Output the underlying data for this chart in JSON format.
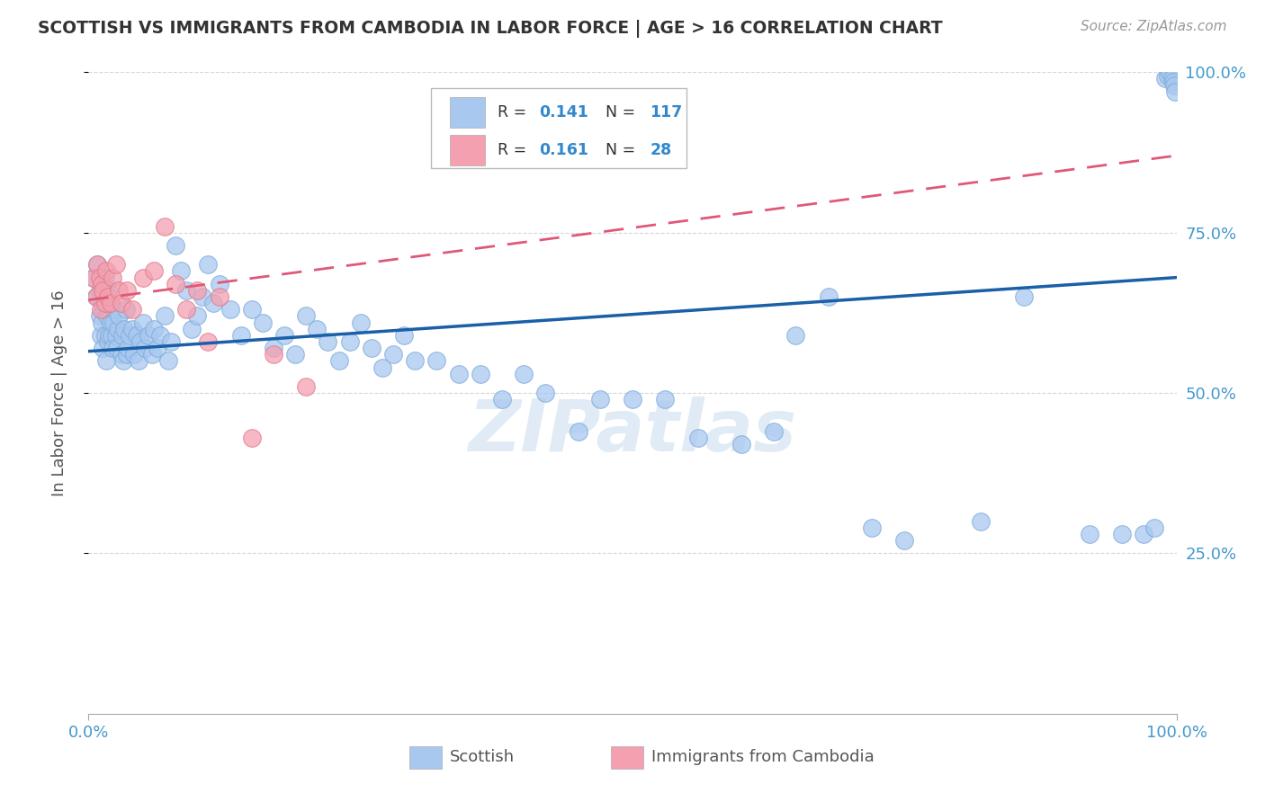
{
  "title": "SCOTTISH VS IMMIGRANTS FROM CAMBODIA IN LABOR FORCE | AGE > 16 CORRELATION CHART",
  "source": "Source: ZipAtlas.com",
  "ylabel": "In Labor Force | Age > 16",
  "xlim": [
    0,
    1
  ],
  "ylim": [
    0,
    1
  ],
  "scottish_color": "#a8c8f0",
  "scottish_edge_color": "#7aaad8",
  "scottish_line_color": "#1a5fa8",
  "cambodia_color": "#f4a0b0",
  "cambodia_edge_color": "#e07888",
  "cambodia_line_color": "#e05878",
  "watermark": "ZIPatlas",
  "background_color": "#ffffff",
  "grid_color": "#cccccc",
  "title_color": "#333333",
  "scottish_x": [
    0.005,
    0.007,
    0.008,
    0.01,
    0.01,
    0.011,
    0.012,
    0.013,
    0.013,
    0.014,
    0.015,
    0.015,
    0.016,
    0.017,
    0.018,
    0.018,
    0.019,
    0.02,
    0.02,
    0.021,
    0.022,
    0.023,
    0.024,
    0.025,
    0.026,
    0.027,
    0.028,
    0.03,
    0.031,
    0.032,
    0.033,
    0.034,
    0.035,
    0.036,
    0.038,
    0.04,
    0.042,
    0.044,
    0.046,
    0.048,
    0.05,
    0.052,
    0.055,
    0.058,
    0.06,
    0.063,
    0.066,
    0.07,
    0.073,
    0.076,
    0.08,
    0.085,
    0.09,
    0.095,
    0.1,
    0.105,
    0.11,
    0.115,
    0.12,
    0.13,
    0.14,
    0.15,
    0.16,
    0.17,
    0.18,
    0.19,
    0.2,
    0.21,
    0.22,
    0.23,
    0.24,
    0.25,
    0.26,
    0.27,
    0.28,
    0.29,
    0.3,
    0.32,
    0.34,
    0.36,
    0.38,
    0.4,
    0.42,
    0.45,
    0.47,
    0.5,
    0.53,
    0.56,
    0.6,
    0.63,
    0.65,
    0.68,
    0.72,
    0.75,
    0.82,
    0.86,
    0.92,
    0.95,
    0.97,
    0.98,
    0.99,
    0.992,
    0.994,
    0.996,
    0.997,
    0.998,
    0.999
  ],
  "scottish_y": [
    0.68,
    0.65,
    0.7,
    0.66,
    0.62,
    0.59,
    0.61,
    0.64,
    0.57,
    0.63,
    0.68,
    0.59,
    0.55,
    0.62,
    0.66,
    0.58,
    0.59,
    0.61,
    0.64,
    0.59,
    0.57,
    0.61,
    0.63,
    0.59,
    0.57,
    0.6,
    0.62,
    0.56,
    0.59,
    0.55,
    0.6,
    0.63,
    0.56,
    0.57,
    0.59,
    0.6,
    0.56,
    0.59,
    0.55,
    0.58,
    0.61,
    0.57,
    0.59,
    0.56,
    0.6,
    0.57,
    0.59,
    0.62,
    0.55,
    0.58,
    0.73,
    0.69,
    0.66,
    0.6,
    0.62,
    0.65,
    0.7,
    0.64,
    0.67,
    0.63,
    0.59,
    0.63,
    0.61,
    0.57,
    0.59,
    0.56,
    0.62,
    0.6,
    0.58,
    0.55,
    0.58,
    0.61,
    0.57,
    0.54,
    0.56,
    0.59,
    0.55,
    0.55,
    0.53,
    0.53,
    0.49,
    0.53,
    0.5,
    0.44,
    0.49,
    0.49,
    0.49,
    0.43,
    0.42,
    0.44,
    0.59,
    0.65,
    0.29,
    0.27,
    0.3,
    0.65,
    0.28,
    0.28,
    0.28,
    0.29,
    0.99,
    0.995,
    1.0,
    0.99,
    0.985,
    0.98,
    0.97
  ],
  "cambodia_x": [
    0.005,
    0.007,
    0.008,
    0.01,
    0.011,
    0.012,
    0.013,
    0.015,
    0.016,
    0.018,
    0.02,
    0.022,
    0.025,
    0.028,
    0.03,
    0.035,
    0.04,
    0.05,
    0.06,
    0.07,
    0.08,
    0.09,
    0.1,
    0.11,
    0.12,
    0.15,
    0.17,
    0.2
  ],
  "cambodia_y": [
    0.68,
    0.65,
    0.7,
    0.68,
    0.63,
    0.67,
    0.66,
    0.64,
    0.69,
    0.65,
    0.64,
    0.68,
    0.7,
    0.66,
    0.64,
    0.66,
    0.63,
    0.68,
    0.69,
    0.76,
    0.67,
    0.63,
    0.66,
    0.58,
    0.65,
    0.43,
    0.56,
    0.51
  ],
  "scot_line_x0": 0.0,
  "scot_line_y0": 0.565,
  "scot_line_x1": 1.0,
  "scot_line_y1": 0.68,
  "camb_line_x0": 0.0,
  "camb_line_y0": 0.645,
  "camb_line_x1": 1.0,
  "camb_line_y1": 0.87
}
